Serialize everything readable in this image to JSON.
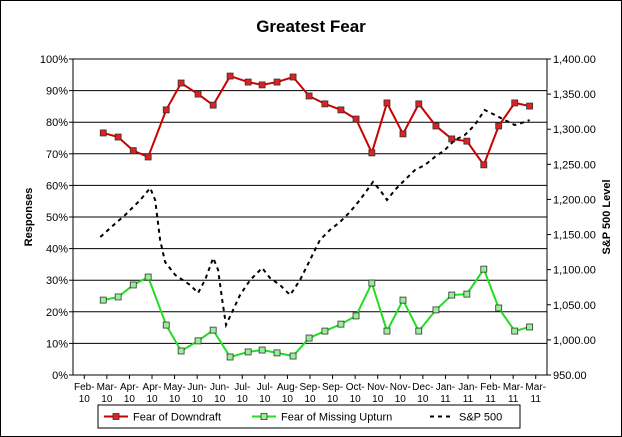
{
  "chart_data": {
    "type": "line",
    "title": "Greatest Fear",
    "y_label": "Responses",
    "y2_label": "S&P 500 Level",
    "x": [
      0.84,
      1.5,
      2.17,
      2.83,
      3.63,
      4.29,
      5.04,
      5.71,
      6.46,
      7.26,
      7.88,
      8.54,
      9.25,
      9.96,
      10.66,
      11.37,
      12.04,
      12.74,
      13.41,
      14.12,
      14.82,
      15.58,
      16.28,
      16.95,
      17.7,
      18.36,
      19.07,
      19.73
    ],
    "xlim": [
      -0.5,
      20.5
    ],
    "xticks": [
      {
        "value": 0,
        "label": "Feb-10"
      },
      {
        "value": 1,
        "label": "Mar-10"
      },
      {
        "value": 2,
        "label": "Apr-10"
      },
      {
        "value": 3,
        "label": "Apr-10"
      },
      {
        "value": 4,
        "label": "May-10"
      },
      {
        "value": 5,
        "label": "Jun-10"
      },
      {
        "value": 6,
        "label": "Jun-10"
      },
      {
        "value": 7,
        "label": "Jul-10"
      },
      {
        "value": 8,
        "label": "Jul-10"
      },
      {
        "value": 9,
        "label": "Aug-10"
      },
      {
        "value": 10,
        "label": "Sep-10"
      },
      {
        "value": 11,
        "label": "Sep-10"
      },
      {
        "value": 12,
        "label": "Oct-10"
      },
      {
        "value": 13,
        "label": "Nov-10"
      },
      {
        "value": 14,
        "label": "Nov-10"
      },
      {
        "value": 15,
        "label": "Dec-10"
      },
      {
        "value": 16,
        "label": "Jan-11"
      },
      {
        "value": 17,
        "label": "Jan-11"
      },
      {
        "value": 18,
        "label": "Feb-11"
      },
      {
        "value": 19,
        "label": "Mar-11"
      },
      {
        "value": 20,
        "label": "Mar-11"
      }
    ],
    "ylim": [
      0,
      100
    ],
    "yticks": [
      {
        "value": 0,
        "label": "0%"
      },
      {
        "value": 10,
        "label": "10%"
      },
      {
        "value": 20,
        "label": "20%"
      },
      {
        "value": 30,
        "label": "30%"
      },
      {
        "value": 40,
        "label": "40%"
      },
      {
        "value": 50,
        "label": "50%"
      },
      {
        "value": 60,
        "label": "60%"
      },
      {
        "value": 70,
        "label": "70%"
      },
      {
        "value": 80,
        "label": "80%"
      },
      {
        "value": 90,
        "label": "90%"
      },
      {
        "value": 100,
        "label": "100%"
      }
    ],
    "y2lim": [
      950,
      1400
    ],
    "y2ticks": [
      {
        "value": 950,
        "label": "950.00"
      },
      {
        "value": 1000,
        "label": "1,000.00"
      },
      {
        "value": 1050,
        "label": "1,050.00"
      },
      {
        "value": 1100,
        "label": "1,100.00"
      },
      {
        "value": 1150,
        "label": "1,150.00"
      },
      {
        "value": 1200,
        "label": "1,200.00"
      },
      {
        "value": 1250,
        "label": "1,250.00"
      },
      {
        "value": 1300,
        "label": "1,300.00"
      },
      {
        "value": 1350,
        "label": "1,350.00"
      },
      {
        "value": 1400,
        "label": "1,400.00"
      }
    ],
    "grid": true,
    "legend": "bottom",
    "series": [
      {
        "name": "Fear of Downdraft",
        "color": "#cc0000",
        "marker_fill": "#dd2222",
        "values": [
          76.6,
          75.3,
          71,
          69,
          83.9,
          92.4,
          88.9,
          85.4,
          94.6,
          92.7,
          91.8,
          92.7,
          94.3,
          88.3,
          85.8,
          83.9,
          81,
          70.3,
          86.1,
          76.3,
          85.8,
          78.8,
          74.7,
          74,
          66.5,
          78.8,
          86.1,
          85.1
        ]
      },
      {
        "name": "Fear of Missing Upturn",
        "color": "#22dd22",
        "marker_fill": "#99ee99",
        "values": [
          23.7,
          24.7,
          28.5,
          31,
          15.8,
          7.6,
          10.8,
          14.2,
          5.7,
          7.3,
          7.9,
          7,
          6,
          11.7,
          13.9,
          16.1,
          18.7,
          29.1,
          13.9,
          23.7,
          13.9,
          20.6,
          25.3,
          25.6,
          33.5,
          21.2,
          13.9,
          15.2
        ]
      },
      {
        "name": "S&P 500",
        "color": "#000000",
        "axis": "y2",
        "dash": true,
        "x": [
          0.71,
          1.15,
          1.81,
          2.48,
          2.92,
          3.14,
          3.36,
          3.58,
          4.03,
          4.69,
          5.04,
          5.35,
          5.71,
          5.93,
          6.11,
          6.28,
          6.55,
          6.9,
          7.35,
          7.88,
          8.23,
          8.67,
          9.12,
          9.56,
          10,
          10.44,
          10.88,
          11.33,
          11.77,
          12.21,
          12.79,
          13.1,
          13.41,
          13.76,
          14.2,
          14.65,
          15.09,
          15.53,
          15.97,
          16.42,
          16.86,
          17.3,
          17.74,
          18.19,
          18.63,
          19.07,
          19.51,
          19.73
        ],
        "values": [
          1146.5,
          1159.3,
          1177.9,
          1199.2,
          1216.3,
          1199.2,
          1142.3,
          1110.9,
          1092.4,
          1078.2,
          1066.8,
          1085.3,
          1116.6,
          1099.5,
          1056.8,
          1021.2,
          1039.7,
          1063.9,
          1085.3,
          1102.4,
          1088.1,
          1078.2,
          1063.9,
          1085.3,
          1113.8,
          1142.3,
          1156.5,
          1167.9,
          1182.1,
          1199.2,
          1224.9,
          1213.5,
          1199.2,
          1213.5,
          1227.7,
          1241.9,
          1249,
          1260.5,
          1270.4,
          1284.7,
          1291.8,
          1306,
          1327.4,
          1320.3,
          1313.1,
          1306,
          1310.3,
          1313.1
        ]
      }
    ]
  }
}
